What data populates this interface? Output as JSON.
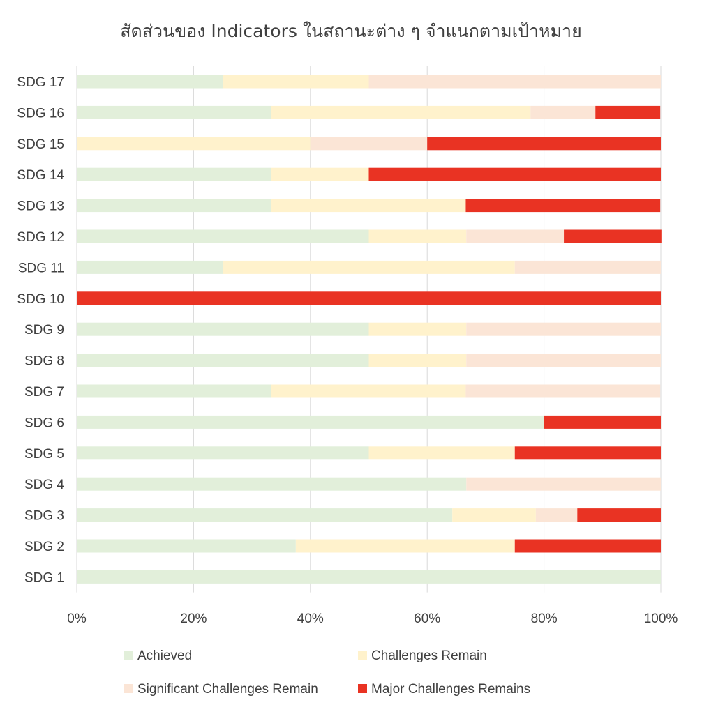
{
  "chart_data": {
    "type": "bar",
    "orientation": "horizontal",
    "stacked": "percent",
    "title": "สัดส่วนของ Indicators ในสถานะต่าง ๆ จำแนกตามเป้าหมาย",
    "xlabel": "",
    "ylabel": "",
    "xlim": [
      0,
      100
    ],
    "x_ticks": [
      "0%",
      "20%",
      "40%",
      "60%",
      "80%",
      "100%"
    ],
    "grid": true,
    "legend_position": "bottom",
    "categories": [
      "SDG 17",
      "SDG 16",
      "SDG 15",
      "SDG 14",
      "SDG 13",
      "SDG 12",
      "SDG 11",
      "SDG 10",
      "SDG 9",
      "SDG 8",
      "SDG 7",
      "SDG 6",
      "SDG 5",
      "SDG 4",
      "SDG 3",
      "SDG 2",
      "SDG 1"
    ],
    "series": [
      {
        "name": "Achieved",
        "color": "#e2efda",
        "values": [
          25,
          33.3,
          0,
          33.3,
          33.3,
          50,
          25,
          0,
          50,
          50,
          33.3,
          80,
          50,
          66.7,
          64.3,
          37.5,
          100
        ]
      },
      {
        "name": "Challenges Remain",
        "color": "#fff2cc",
        "values": [
          25,
          44.4,
          40,
          16.7,
          33.3,
          16.7,
          50,
          0,
          16.7,
          16.7,
          33.3,
          0,
          25,
          0,
          14.3,
          37.5,
          0
        ]
      },
      {
        "name": "Significant Challenges Remain",
        "color": "#fbe5d6",
        "values": [
          50,
          11.1,
          20,
          0,
          0,
          16.7,
          25,
          0,
          33.3,
          33.3,
          33.3,
          0,
          0,
          33.3,
          7.1,
          0,
          0
        ]
      },
      {
        "name": "Major Challenges Remains",
        "color": "#e93323",
        "values": [
          0,
          11.1,
          40,
          50,
          33.3,
          16.7,
          0,
          100,
          0,
          0,
          0,
          20,
          25,
          0,
          14.3,
          25,
          0
        ]
      }
    ]
  }
}
